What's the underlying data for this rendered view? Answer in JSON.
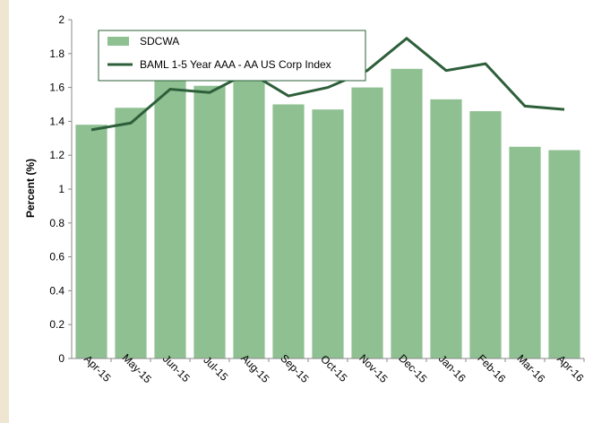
{
  "chart_data": {
    "type": "bar-line",
    "y_label": "Percent (%)",
    "categories": [
      "Apr-15",
      "May-15",
      "Jun-15",
      "Jul-15",
      "Aug-15",
      "Sep-15",
      "Oct-15",
      "Nov-15",
      "Dec-15",
      "Jan-16",
      "Feb-16",
      "Mar-16",
      "Apr-16"
    ],
    "series": [
      {
        "name": "SDCWA",
        "type": "bar",
        "color": "#8fc092",
        "values": [
          1.38,
          1.48,
          1.65,
          1.61,
          1.65,
          1.5,
          1.47,
          1.6,
          1.71,
          1.53,
          1.46,
          1.25,
          1.23
        ]
      },
      {
        "name": "BAML 1-5 Year AAA - AA US Corp Index",
        "type": "line",
        "color": "#2d5f3a",
        "values": [
          1.35,
          1.39,
          1.59,
          1.57,
          1.69,
          1.55,
          1.6,
          1.7,
          1.89,
          1.7,
          1.74,
          1.49,
          1.47
        ]
      }
    ],
    "ylim": [
      0,
      2
    ],
    "yticks": [
      0,
      0.2,
      0.4,
      0.6,
      0.8,
      1,
      1.2,
      1.4,
      1.6,
      1.8,
      2
    ],
    "grid": false
  }
}
